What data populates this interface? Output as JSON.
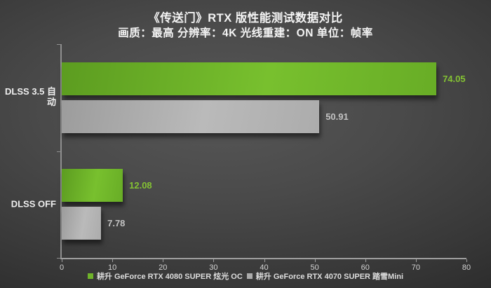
{
  "title": "《传送门》RTX 版性能测试数据对比",
  "subtitle": "画质：最高 分辨率：4K 光线重建：ON 单位：帧率",
  "chart_data": {
    "type": "bar",
    "orientation": "horizontal",
    "title": "《传送门》RTX 版性能测试数据对比",
    "subtitle": "画质：最高 分辨率：4K 光线重建：ON 单位：帧率",
    "categories": [
      "DLSS 3.5 自动",
      "DLSS OFF"
    ],
    "series": [
      {
        "name": "耕升 GeForce RTX 4080 SUPER 炫光 OC",
        "values": [
          74.05,
          12.08
        ],
        "value_labels": [
          "74.05",
          "12.08"
        ],
        "color": "#6fb32a",
        "gradient": [
          "#5c9c20",
          "#78c02e",
          "#68ad26"
        ],
        "label_color": "#84c233"
      },
      {
        "name": "耕升 GeForce RTX 4070 SUPER 踏雪Mini",
        "values": [
          50.91,
          7.78
        ],
        "value_labels": [
          "50.91",
          "7.78"
        ],
        "color": "#ababab",
        "gradient": [
          "#9c9c9c",
          "#bababa",
          "#acacac"
        ],
        "label_color": "#c3c3c3"
      }
    ],
    "xlabel": "",
    "ylabel": "",
    "xlim": [
      0,
      80
    ],
    "x_ticks": [
      "0",
      "10",
      "20",
      "30",
      "40",
      "50",
      "60",
      "70",
      "80"
    ],
    "grid": false,
    "legend_position": "bottom",
    "value_labels_shown": true,
    "background": "dark-gray-radial-gradient"
  },
  "colors": {
    "accent_green": "#76b900",
    "bar_gray": "#ababab",
    "background_dark": "#1d1d1d",
    "axis": "#9e9e9e",
    "text_light": "#f4f4f4"
  }
}
